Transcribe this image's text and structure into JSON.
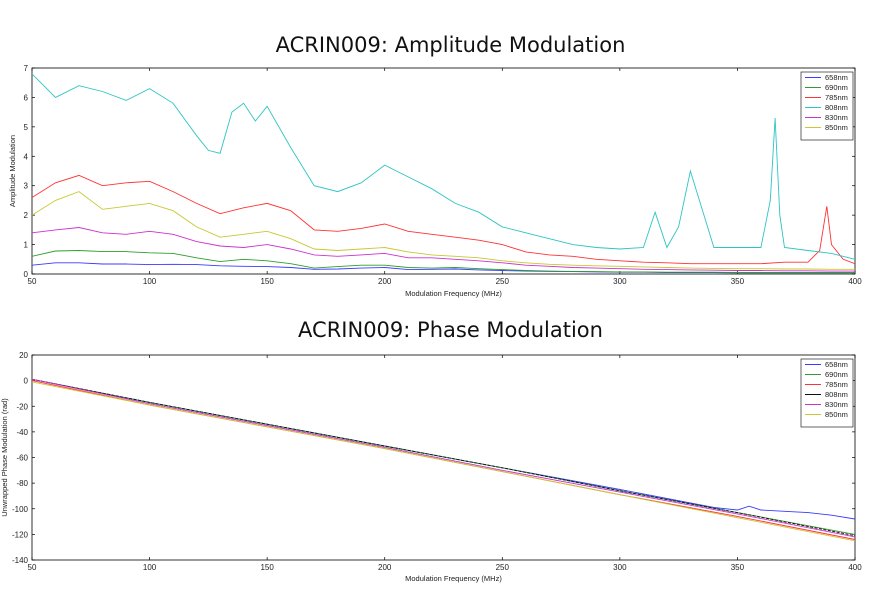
{
  "colors": {
    "658nm": "#3b3bff",
    "690nm": "#2e9e2e",
    "785nm": "#ff3333",
    "808nm": "#2ec4c4",
    "830nm": "#cc33cc",
    "850nm": "#c8c832",
    "808nm_phase": "#111111"
  },
  "chart_data": [
    {
      "type": "line",
      "title": "ACRIN009: Amplitude Modulation",
      "xlabel": "Modulation Frequency (MHz)",
      "ylabel": "Amplitude Modulation",
      "xlim": [
        50,
        400
      ],
      "ylim": [
        0,
        7
      ],
      "xticks": [
        50,
        100,
        150,
        200,
        250,
        300,
        350,
        400
      ],
      "yticks": [
        0,
        1,
        2,
        3,
        4,
        5,
        6,
        7
      ],
      "legend_position": "top-right",
      "series": [
        {
          "name": "658nm",
          "x": [
            50,
            60,
            70,
            80,
            90,
            100,
            110,
            120,
            130,
            140,
            150,
            160,
            170,
            180,
            190,
            200,
            210,
            220,
            230,
            240,
            250,
            260,
            270,
            280,
            290,
            300,
            310,
            320,
            330,
            340,
            350,
            360,
            370,
            380,
            390,
            400
          ],
          "y": [
            0.3,
            0.38,
            0.38,
            0.34,
            0.34,
            0.32,
            0.33,
            0.32,
            0.28,
            0.26,
            0.25,
            0.22,
            0.16,
            0.17,
            0.2,
            0.22,
            0.15,
            0.16,
            0.17,
            0.14,
            0.12,
            0.1,
            0.09,
            0.08,
            0.07,
            0.06,
            0.06,
            0.05,
            0.05,
            0.05,
            0.04,
            0.04,
            0.04,
            0.04,
            0.04,
            0.04
          ]
        },
        {
          "name": "690nm",
          "x": [
            50,
            60,
            70,
            80,
            90,
            100,
            110,
            120,
            130,
            140,
            150,
            160,
            170,
            180,
            190,
            200,
            210,
            220,
            230,
            240,
            250,
            260,
            270,
            280,
            290,
            300,
            310,
            320,
            330,
            340,
            350,
            360,
            370,
            380,
            390,
            400
          ],
          "y": [
            0.6,
            0.78,
            0.8,
            0.76,
            0.76,
            0.72,
            0.7,
            0.55,
            0.42,
            0.5,
            0.45,
            0.35,
            0.2,
            0.25,
            0.3,
            0.3,
            0.22,
            0.2,
            0.22,
            0.18,
            0.15,
            0.12,
            0.1,
            0.09,
            0.08,
            0.07,
            0.07,
            0.06,
            0.06,
            0.06,
            0.05,
            0.05,
            0.05,
            0.05,
            0.05,
            0.05
          ]
        },
        {
          "name": "785nm",
          "x": [
            50,
            60,
            70,
            80,
            90,
            100,
            110,
            120,
            130,
            140,
            150,
            160,
            170,
            180,
            190,
            200,
            210,
            220,
            230,
            240,
            250,
            260,
            270,
            280,
            290,
            300,
            310,
            320,
            330,
            340,
            350,
            360,
            370,
            380,
            385,
            388,
            390,
            395,
            400
          ],
          "y": [
            2.6,
            3.1,
            3.35,
            3.0,
            3.1,
            3.15,
            2.8,
            2.4,
            2.05,
            2.25,
            2.4,
            2.15,
            1.5,
            1.45,
            1.55,
            1.7,
            1.45,
            1.35,
            1.25,
            1.15,
            1.0,
            0.75,
            0.65,
            0.6,
            0.5,
            0.45,
            0.4,
            0.38,
            0.35,
            0.35,
            0.35,
            0.35,
            0.4,
            0.4,
            0.8,
            2.3,
            1.0,
            0.5,
            0.35
          ]
        },
        {
          "name": "808nm",
          "x": [
            50,
            55,
            60,
            70,
            80,
            90,
            100,
            110,
            120,
            125,
            130,
            135,
            140,
            145,
            150,
            160,
            170,
            180,
            190,
            200,
            210,
            220,
            230,
            240,
            250,
            260,
            270,
            280,
            290,
            300,
            310,
            315,
            320,
            325,
            330,
            340,
            350,
            360,
            364,
            366,
            368,
            370,
            380,
            390,
            400
          ],
          "y": [
            6.8,
            6.4,
            6.0,
            6.4,
            6.2,
            5.9,
            6.3,
            5.8,
            4.7,
            4.2,
            4.1,
            5.5,
            5.8,
            5.2,
            5.7,
            4.3,
            3.0,
            2.8,
            3.1,
            3.7,
            3.3,
            2.9,
            2.4,
            2.1,
            1.6,
            1.4,
            1.2,
            1.0,
            0.9,
            0.85,
            0.9,
            2.1,
            0.9,
            1.6,
            3.5,
            0.9,
            0.9,
            0.9,
            2.5,
            5.3,
            2.0,
            0.9,
            0.8,
            0.7,
            0.5
          ]
        },
        {
          "name": "830nm",
          "x": [
            50,
            60,
            70,
            80,
            90,
            100,
            110,
            120,
            130,
            140,
            150,
            160,
            170,
            180,
            190,
            200,
            210,
            220,
            230,
            240,
            250,
            260,
            270,
            280,
            290,
            300,
            310,
            320,
            330,
            340,
            350,
            360,
            370,
            380,
            390,
            400
          ],
          "y": [
            1.4,
            1.5,
            1.58,
            1.4,
            1.35,
            1.45,
            1.35,
            1.1,
            0.95,
            0.9,
            1.0,
            0.85,
            0.65,
            0.6,
            0.65,
            0.7,
            0.55,
            0.55,
            0.5,
            0.45,
            0.38,
            0.3,
            0.26,
            0.22,
            0.2,
            0.18,
            0.16,
            0.15,
            0.14,
            0.13,
            0.12,
            0.12,
            0.11,
            0.11,
            0.1,
            0.1
          ]
        },
        {
          "name": "850nm",
          "x": [
            50,
            60,
            70,
            80,
            90,
            100,
            110,
            120,
            130,
            140,
            150,
            160,
            170,
            180,
            190,
            200,
            210,
            220,
            230,
            240,
            250,
            260,
            270,
            280,
            290,
            300,
            310,
            320,
            330,
            340,
            350,
            360,
            370,
            380,
            390,
            400
          ],
          "y": [
            2.0,
            2.5,
            2.8,
            2.2,
            2.3,
            2.4,
            2.15,
            1.6,
            1.25,
            1.35,
            1.45,
            1.2,
            0.85,
            0.8,
            0.85,
            0.9,
            0.75,
            0.65,
            0.6,
            0.55,
            0.45,
            0.38,
            0.33,
            0.3,
            0.28,
            0.26,
            0.24,
            0.22,
            0.2,
            0.19,
            0.18,
            0.18,
            0.17,
            0.17,
            0.16,
            0.16
          ]
        }
      ]
    },
    {
      "type": "line",
      "title": "ACRIN009: Phase Modulation",
      "xlabel": "Modulation Frequency (MHz)",
      "ylabel": "Unwrapped Phase Modulation (rad)",
      "xlim": [
        50,
        400
      ],
      "ylim": [
        -140,
        20
      ],
      "xticks": [
        50,
        100,
        150,
        200,
        250,
        300,
        350,
        400
      ],
      "yticks": [
        -140,
        -120,
        -100,
        -80,
        -60,
        -40,
        -20,
        0,
        20
      ],
      "legend_position": "top-right",
      "series": [
        {
          "name": "658nm",
          "x": [
            50,
            100,
            150,
            200,
            250,
            300,
            340,
            350,
            355,
            360,
            370,
            380,
            390,
            400
          ],
          "y": [
            1,
            -17,
            -34,
            -51,
            -68,
            -85,
            -99,
            -101,
            -98,
            -101,
            -102,
            -103,
            -105,
            -108
          ]
        },
        {
          "name": "690nm",
          "x": [
            50,
            100,
            150,
            200,
            250,
            300,
            350,
            400
          ],
          "y": [
            1,
            -17,
            -34,
            -51,
            -68,
            -86,
            -103,
            -120
          ]
        },
        {
          "name": "785nm",
          "x": [
            50,
            100,
            150,
            200,
            250,
            300,
            350,
            400
          ],
          "y": [
            0,
            -19,
            -36,
            -53,
            -71,
            -89,
            -106,
            -124
          ]
        },
        {
          "name": "808nm",
          "x": [
            50,
            100,
            150,
            200,
            250,
            300,
            350,
            400
          ],
          "y": [
            1,
            -17,
            -34,
            -51,
            -68,
            -86,
            -103,
            -121
          ]
        },
        {
          "name": "830nm",
          "x": [
            50,
            100,
            150,
            200,
            250,
            300,
            350,
            400
          ],
          "y": [
            1,
            -18,
            -35,
            -52,
            -70,
            -87,
            -104,
            -122
          ]
        },
        {
          "name": "850nm",
          "x": [
            50,
            100,
            150,
            200,
            250,
            300,
            350,
            400
          ],
          "y": [
            -1,
            -19,
            -36,
            -53,
            -71,
            -89,
            -107,
            -125
          ]
        }
      ]
    }
  ]
}
